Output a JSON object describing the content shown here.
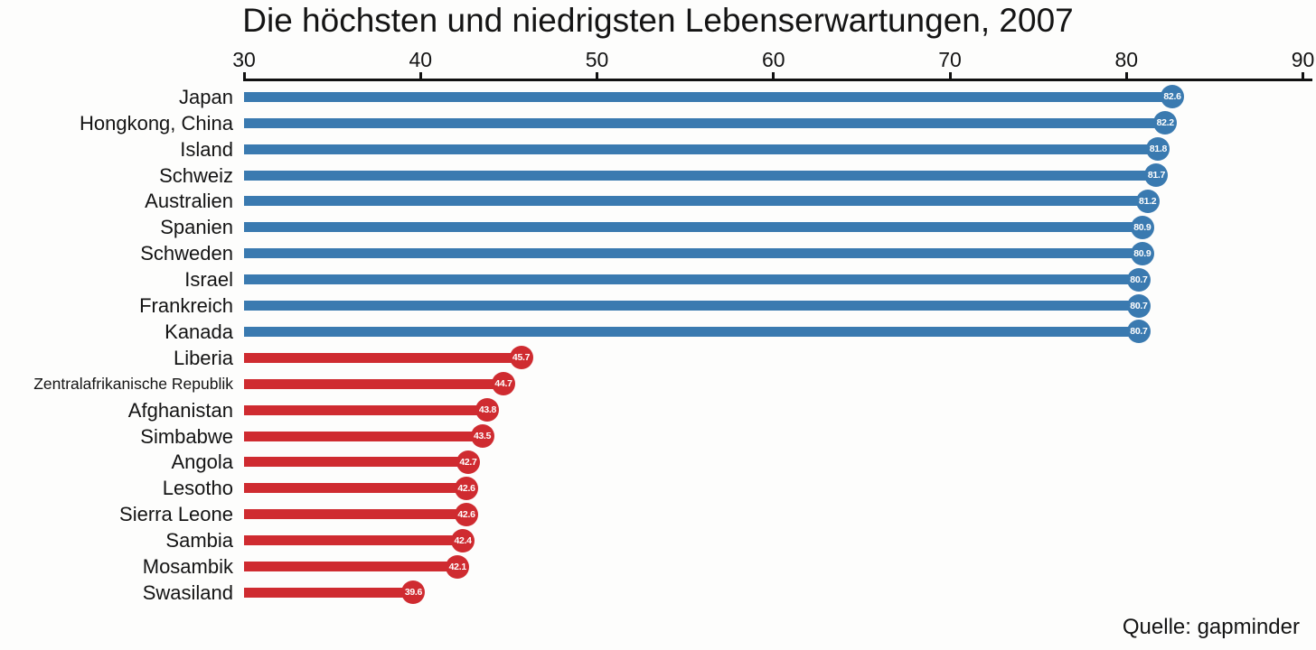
{
  "title": "Die höchsten und niedrigsten Lebenserwartungen, 2007",
  "source": "Quelle: gapminder",
  "colors": {
    "high": "#3a7ab0",
    "low": "#cf2b30",
    "axis": "#111111",
    "text": "#141414",
    "value_text": "#ffffff",
    "background": "#fdfdfc"
  },
  "chart_data": {
    "type": "bar",
    "subtype": "horizontal-lollipop",
    "title": "Die höchsten und niedrigsten Lebenserwartungen, 2007",
    "xlabel": "",
    "ylabel": "",
    "xlim": [
      30,
      90
    ],
    "xticks": [
      30,
      40,
      50,
      60,
      70,
      80,
      90
    ],
    "grid": false,
    "legend": false,
    "axis_position": "top",
    "source": "Quelle: gapminder",
    "bars": [
      {
        "label": "Japan",
        "value": 82.6,
        "group": "high",
        "color": "#3a7ab0"
      },
      {
        "label": "Hongkong, China",
        "value": 82.2,
        "group": "high",
        "color": "#3a7ab0"
      },
      {
        "label": "Island",
        "value": 81.8,
        "group": "high",
        "color": "#3a7ab0"
      },
      {
        "label": "Schweiz",
        "value": 81.7,
        "group": "high",
        "color": "#3a7ab0"
      },
      {
        "label": "Australien",
        "value": 81.2,
        "group": "high",
        "color": "#3a7ab0"
      },
      {
        "label": "Spanien",
        "value": 80.9,
        "group": "high",
        "color": "#3a7ab0"
      },
      {
        "label": "Schweden",
        "value": 80.9,
        "group": "high",
        "color": "#3a7ab0"
      },
      {
        "label": "Israel",
        "value": 80.7,
        "group": "high",
        "color": "#3a7ab0"
      },
      {
        "label": "Frankreich",
        "value": 80.7,
        "group": "high",
        "color": "#3a7ab0"
      },
      {
        "label": "Kanada",
        "value": 80.7,
        "group": "high",
        "color": "#3a7ab0"
      },
      {
        "label": "Liberia",
        "value": 45.7,
        "group": "low",
        "color": "#cf2b30"
      },
      {
        "label": "Zentralafrikanische Republik",
        "value": 44.7,
        "group": "low",
        "color": "#cf2b30"
      },
      {
        "label": "Afghanistan",
        "value": 43.8,
        "group": "low",
        "color": "#cf2b30"
      },
      {
        "label": "Simbabwe",
        "value": 43.5,
        "group": "low",
        "color": "#cf2b30"
      },
      {
        "label": "Angola",
        "value": 42.7,
        "group": "low",
        "color": "#cf2b30"
      },
      {
        "label": "Lesotho",
        "value": 42.6,
        "group": "low",
        "color": "#cf2b30"
      },
      {
        "label": "Sierra Leone",
        "value": 42.6,
        "group": "low",
        "color": "#cf2b30"
      },
      {
        "label": "Sambia",
        "value": 42.4,
        "group": "low",
        "color": "#cf2b30"
      },
      {
        "label": "Mosambik",
        "value": 42.1,
        "group": "low",
        "color": "#cf2b30"
      },
      {
        "label": "Swasiland",
        "value": 39.6,
        "group": "low",
        "color": "#cf2b30"
      }
    ]
  }
}
